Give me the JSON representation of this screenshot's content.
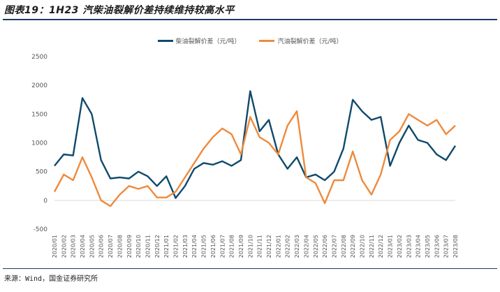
{
  "header": {
    "title": "图表19：1H23 汽柴油裂解价差持续维持较高水平"
  },
  "footer": {
    "source": "来源：Wind，国金证券研究所"
  },
  "colors": {
    "diesel": "#0e4a6b",
    "gasoline": "#ee8a3c",
    "grid": "#d9d9d9",
    "rule": "#1f3b64"
  },
  "chart_data": {
    "type": "line",
    "title": "",
    "xlabel": "",
    "ylabel": "",
    "ylim": [
      -500,
      2500
    ],
    "yticks": [
      -500,
      0,
      500,
      1000,
      1500,
      2000,
      2500
    ],
    "legend_position": "top-center",
    "x": [
      "2020/01",
      "2020/02",
      "2020/03",
      "2020/04",
      "2020/05",
      "2020/06",
      "2020/07",
      "2020/08",
      "2020/09",
      "2020/10",
      "2020/11",
      "2020/12",
      "2021/01",
      "2021/02",
      "2021/03",
      "2021/04",
      "2021/05",
      "2021/06",
      "2021/07",
      "2021/08",
      "2021/09",
      "2021/10",
      "2021/11",
      "2021/12",
      "2022/01",
      "2022/02",
      "2022/03",
      "2022/04",
      "2022/05",
      "2022/06",
      "2022/07",
      "2022/08",
      "2022/09",
      "2022/10",
      "2022/11",
      "2022/12",
      "2023/01",
      "2023/02",
      "2023/03",
      "2023/04",
      "2023/05",
      "2023/06",
      "2023/07",
      "2023/08"
    ],
    "series": [
      {
        "name": "柴油裂解价差（元/吨）",
        "values": [
          600,
          800,
          780,
          1780,
          1500,
          700,
          380,
          400,
          380,
          500,
          420,
          250,
          420,
          40,
          250,
          550,
          650,
          620,
          680,
          600,
          700,
          1900,
          1200,
          1400,
          800,
          550,
          750,
          400,
          450,
          350,
          500,
          900,
          1750,
          1550,
          1400,
          1450,
          600,
          1000,
          1300,
          1050,
          1000,
          800,
          700,
          950
        ]
      },
      {
        "name": "汽油裂解价差（元/吨）",
        "values": [
          150,
          450,
          350,
          750,
          400,
          0,
          -100,
          100,
          250,
          200,
          250,
          50,
          50,
          150,
          400,
          650,
          900,
          1100,
          1250,
          1150,
          800,
          1450,
          1100,
          1000,
          800,
          1300,
          1550,
          400,
          300,
          -50,
          350,
          350,
          850,
          350,
          100,
          450,
          1050,
          1200,
          1500,
          1400,
          1300,
          1400,
          1150,
          1300
        ]
      }
    ]
  }
}
